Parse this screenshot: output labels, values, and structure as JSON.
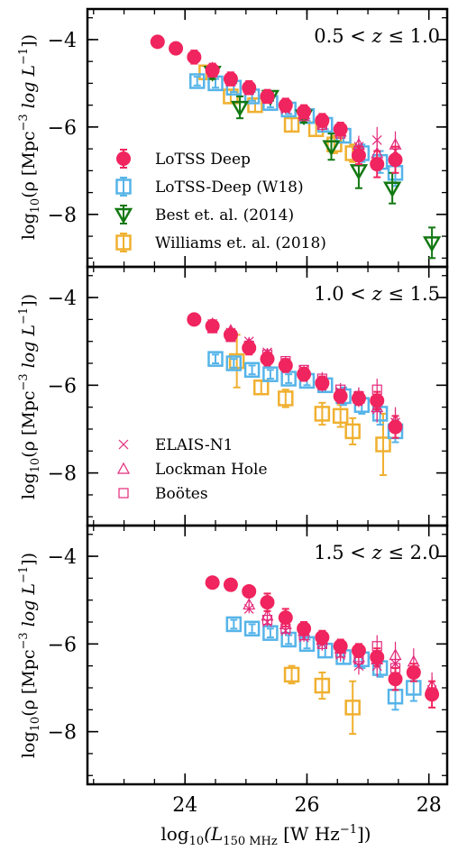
{
  "chart_data": [
    {
      "type": "scatter",
      "panel": 1,
      "redshift_label": {
        "lo": "0.5",
        "lt": "<",
        "mid": "z",
        "le": "≤",
        "hi": "1.0"
      },
      "xlim": [
        22.4,
        28.3
      ],
      "ylim": [
        -9.2,
        -3.3
      ],
      "legend": [
        {
          "name": "LoTSS Deep",
          "series": "lotss"
        },
        {
          "name": "LoTSS-Deep (W18)",
          "series": "w18"
        },
        {
          "name": "Best et. al. (2014)",
          "series": "best"
        },
        {
          "name": "Williams et. al. (2018)",
          "series": "williams"
        }
      ],
      "series": [
        {
          "name": "LoTSS Deep",
          "key": "lotss",
          "x": [
            23.55,
            23.85,
            24.15,
            24.45,
            24.75,
            25.05,
            25.35,
            25.65,
            25.95,
            26.25,
            26.55,
            26.85,
            27.15,
            27.45
          ],
          "y": [
            -4.05,
            -4.2,
            -4.4,
            -4.7,
            -4.9,
            -5.1,
            -5.3,
            -5.5,
            -5.65,
            -5.85,
            -6.05,
            -6.65,
            -6.85,
            -6.75
          ],
          "err": [
            0.05,
            0.06,
            0.15,
            0.15,
            0.15,
            0.15,
            0.15,
            0.15,
            0.15,
            0.15,
            0.15,
            0.2,
            0.3,
            0.3
          ]
        },
        {
          "name": "LoTSS-Deep (W18)",
          "key": "w18",
          "x": [
            24.2,
            24.5,
            24.8,
            25.1,
            25.4,
            25.7,
            26.0,
            26.3,
            26.6,
            26.9,
            27.2,
            27.45
          ],
          "y": [
            -4.95,
            -5.0,
            -5.1,
            -5.3,
            -5.45,
            -5.6,
            -5.75,
            -5.95,
            -6.2,
            -6.6,
            -6.8,
            -7.05
          ],
          "err": [
            0.1,
            0.1,
            0.1,
            0.1,
            0.1,
            0.1,
            0.1,
            0.1,
            0.15,
            0.2,
            0.25,
            0.3
          ]
        },
        {
          "name": "Best et. al. (2014)",
          "key": "best",
          "x": [
            24.45,
            24.9,
            25.4,
            25.95,
            26.4,
            26.85,
            27.4,
            28.05
          ],
          "y": [
            -4.75,
            -5.55,
            -5.3,
            -5.75,
            -6.45,
            -7.0,
            -7.4,
            -8.65
          ],
          "err": [
            0.15,
            0.25,
            0.1,
            0.15,
            0.3,
            0.4,
            0.35,
            0.35
          ]
        },
        {
          "name": "Williams et. al. (2018)",
          "key": "williams",
          "x": [
            24.35,
            24.75,
            25.15,
            25.75,
            26.15,
            26.45,
            26.75
          ],
          "y": [
            -4.75,
            -5.3,
            -5.5,
            -5.95,
            -6.05,
            -6.4,
            -6.6
          ],
          "err": [
            0.15,
            0.15,
            0.15,
            0.15,
            0.15,
            0.2,
            0.2
          ]
        },
        {
          "name": "ELAIS-N1",
          "key": "elais",
          "x": [
            24.45,
            24.75,
            25.05,
            25.35,
            25.65,
            25.95,
            26.25,
            26.55,
            26.85,
            27.15,
            27.45
          ],
          "y": [
            -4.7,
            -4.95,
            -5.15,
            -5.35,
            -5.6,
            -5.75,
            -5.95,
            -6.1,
            -6.45,
            -6.3,
            -6.55
          ],
          "err": [
            0.1,
            0.1,
            0.1,
            0.1,
            0.1,
            0.1,
            0.1,
            0.15,
            0.2,
            0.3,
            0.3
          ]
        },
        {
          "name": "Lockman Hole",
          "key": "lockman",
          "x": [
            24.45,
            24.75,
            25.05,
            25.35,
            25.65,
            25.95,
            26.25,
            26.55,
            26.85,
            27.15,
            27.45
          ],
          "y": [
            -4.65,
            -4.9,
            -5.1,
            -5.3,
            -5.5,
            -5.7,
            -5.85,
            -6.1,
            -6.4,
            -6.6,
            -6.4
          ],
          "err": [
            0.1,
            0.1,
            0.1,
            0.1,
            0.1,
            0.1,
            0.15,
            0.15,
            0.2,
            0.3,
            0.3
          ]
        },
        {
          "name": "Boötes",
          "key": "bootes",
          "x": [
            24.45,
            24.75,
            25.05,
            25.35,
            25.65,
            25.95,
            26.25,
            26.55,
            26.85
          ],
          "y": [
            -4.75,
            -4.95,
            -5.15,
            -5.35,
            -5.55,
            -5.75,
            -5.95,
            -6.15,
            -6.55
          ],
          "err": [
            0.1,
            0.1,
            0.1,
            0.1,
            0.1,
            0.1,
            0.15,
            0.15,
            0.2
          ]
        }
      ]
    },
    {
      "type": "scatter",
      "panel": 2,
      "redshift_label": {
        "lo": "1.0",
        "lt": "<",
        "mid": "z",
        "le": "≤",
        "hi": "1.5"
      },
      "xlim": [
        22.4,
        28.3
      ],
      "ylim": [
        -9.2,
        -3.3
      ],
      "legend": [
        {
          "name": "ELAIS-N1",
          "series": "elais"
        },
        {
          "name": "Lockman Hole",
          "series": "lockman"
        },
        {
          "name": "Boötes",
          "series": "bootes"
        }
      ],
      "series": [
        {
          "name": "LoTSS Deep",
          "key": "lotss",
          "x": [
            24.15,
            24.45,
            24.75,
            25.05,
            25.35,
            25.65,
            25.95,
            26.25,
            26.55,
            26.85,
            27.15,
            27.45
          ],
          "y": [
            -4.5,
            -4.65,
            -4.85,
            -5.15,
            -5.4,
            -5.55,
            -5.75,
            -5.95,
            -6.25,
            -6.3,
            -6.35,
            -6.95
          ],
          "err": [
            0.12,
            0.12,
            0.12,
            0.15,
            0.15,
            0.15,
            0.15,
            0.15,
            0.15,
            0.15,
            0.2,
            0.25
          ]
        },
        {
          "name": "LoTSS-Deep (W18)",
          "key": "w18",
          "x": [
            24.5,
            24.8,
            25.1,
            25.4,
            25.7,
            26.0,
            26.3,
            26.6,
            26.9,
            27.2,
            27.45
          ],
          "y": [
            -5.4,
            -5.5,
            -5.65,
            -5.75,
            -5.85,
            -5.9,
            -6.0,
            -6.25,
            -6.45,
            -6.65,
            -7.05
          ],
          "err": [
            0.1,
            0.1,
            0.1,
            0.1,
            0.1,
            0.1,
            0.15,
            0.2,
            0.2,
            0.25,
            0.25
          ]
        },
        {
          "name": "Williams et. al. (2018)",
          "key": "williams",
          "x": [
            24.85,
            25.25,
            25.65,
            26.25,
            26.55,
            26.75,
            27.25
          ],
          "y": [
            -5.45,
            -6.05,
            -6.3,
            -6.65,
            -6.7,
            -7.05,
            -7.35
          ],
          "err": [
            0.6,
            0.15,
            0.2,
            0.25,
            0.25,
            0.3,
            0.7
          ]
        },
        {
          "name": "ELAIS-N1",
          "key": "elais",
          "x": [
            24.45,
            24.75,
            25.05,
            25.35,
            25.65,
            25.95,
            26.25,
            26.55,
            26.85,
            27.15,
            27.45
          ],
          "y": [
            -4.6,
            -4.8,
            -5.0,
            -5.25,
            -5.5,
            -5.65,
            -6.0,
            -6.15,
            -6.25,
            -6.55,
            -6.85
          ],
          "err": [
            0.1,
            0.1,
            0.1,
            0.1,
            0.1,
            0.1,
            0.15,
            0.15,
            0.2,
            0.3,
            0.3
          ]
        },
        {
          "name": "Lockman Hole",
          "key": "lockman",
          "x": [
            24.45,
            24.75,
            25.05,
            25.35,
            25.65,
            25.95,
            26.25,
            26.55,
            26.85,
            27.15,
            27.45
          ],
          "y": [
            -4.6,
            -4.75,
            -5.05,
            -5.3,
            -5.5,
            -5.7,
            -5.95,
            -6.2,
            -6.3,
            -6.5,
            -6.8
          ],
          "err": [
            0.1,
            0.1,
            0.1,
            0.1,
            0.1,
            0.1,
            0.15,
            0.15,
            0.2,
            0.3,
            0.3
          ]
        },
        {
          "name": "Boötes",
          "key": "bootes",
          "x": [
            24.45,
            24.75,
            25.05,
            25.35,
            25.65,
            25.95,
            26.25,
            26.55,
            26.85,
            27.15
          ],
          "y": [
            -4.7,
            -4.9,
            -5.1,
            -5.3,
            -5.45,
            -5.65,
            -5.85,
            -6.1,
            -6.25,
            -6.1
          ],
          "err": [
            0.1,
            0.1,
            0.1,
            0.1,
            0.1,
            0.1,
            0.15,
            0.15,
            0.2,
            0.25
          ]
        }
      ]
    },
    {
      "type": "scatter",
      "panel": 3,
      "redshift_label": {
        "lo": "1.5",
        "lt": "<",
        "mid": "z",
        "le": "≤",
        "hi": "2.0"
      },
      "xlim": [
        22.4,
        28.3
      ],
      "ylim": [
        -9.2,
        -3.3
      ],
      "legend": [],
      "series": [
        {
          "name": "LoTSS Deep",
          "key": "lotss",
          "x": [
            24.45,
            24.75,
            25.05,
            25.35,
            25.65,
            25.95,
            26.25,
            26.55,
            26.85,
            27.15,
            27.45,
            27.75,
            28.05
          ],
          "y": [
            -4.6,
            -4.65,
            -4.8,
            -5.05,
            -5.4,
            -5.65,
            -5.85,
            -6.05,
            -6.15,
            -6.3,
            -6.8,
            -6.65,
            -7.15
          ],
          "err": [
            0.05,
            0.1,
            0.1,
            0.2,
            0.2,
            0.15,
            0.15,
            0.15,
            0.15,
            0.2,
            0.25,
            0.2,
            0.3
          ]
        },
        {
          "name": "LoTSS-Deep (W18)",
          "key": "w18",
          "x": [
            24.8,
            25.1,
            25.4,
            25.7,
            26.0,
            26.3,
            26.6,
            26.9,
            27.2,
            27.45,
            27.75
          ],
          "y": [
            -5.55,
            -5.65,
            -5.75,
            -5.9,
            -6.0,
            -6.15,
            -6.3,
            -6.35,
            -6.55,
            -7.2,
            -7.0
          ],
          "err": [
            0.1,
            0.1,
            0.1,
            0.1,
            0.1,
            0.15,
            0.15,
            0.2,
            0.2,
            0.3,
            0.3
          ]
        },
        {
          "name": "Williams et. al. (2018)",
          "key": "williams",
          "x": [
            25.75,
            26.25,
            26.75
          ],
          "y": [
            -6.7,
            -6.95,
            -7.45
          ],
          "err": [
            0.2,
            0.3,
            0.6
          ]
        },
        {
          "name": "ELAIS-N1",
          "key": "elais",
          "x": [
            25.05,
            25.35,
            25.65,
            25.95,
            26.25,
            26.55,
            26.85,
            27.15,
            27.45,
            28.05
          ],
          "y": [
            -5.2,
            -5.5,
            -5.7,
            -5.85,
            -6.0,
            -6.25,
            -6.5,
            -6.5,
            -6.45,
            -7.05
          ],
          "err": [
            0.1,
            0.1,
            0.1,
            0.1,
            0.15,
            0.15,
            0.2,
            0.25,
            0.3,
            0.3
          ]
        },
        {
          "name": "Lockman Hole",
          "key": "lockman",
          "x": [
            25.05,
            25.35,
            25.65,
            25.95,
            26.25,
            26.55,
            26.85,
            27.15,
            27.45,
            27.75,
            28.05
          ],
          "y": [
            -5.1,
            -5.35,
            -5.55,
            -5.7,
            -5.9,
            -6.1,
            -6.3,
            -6.35,
            -6.25,
            -6.4,
            -6.95
          ],
          "err": [
            0.1,
            0.1,
            0.1,
            0.1,
            0.15,
            0.15,
            0.2,
            0.25,
            0.3,
            0.3,
            0.3
          ]
        },
        {
          "name": "Boötes",
          "key": "bootes",
          "x": [
            25.35,
            25.65,
            25.95,
            26.25,
            26.55,
            26.85,
            27.15,
            27.45
          ],
          "y": [
            -5.45,
            -5.65,
            -5.8,
            -6.0,
            -6.2,
            -6.35,
            -6.05,
            -6.55
          ],
          "err": [
            0.1,
            0.1,
            0.1,
            0.15,
            0.15,
            0.2,
            0.25,
            0.3
          ]
        }
      ]
    }
  ],
  "axes": {
    "x_ticks": [
      24,
      26,
      28
    ],
    "y_ticks": [
      -4,
      -6,
      -8
    ],
    "x_tick_labels": [
      "24",
      "26",
      "28"
    ],
    "y_tick_labels": [
      "−4",
      "−6",
      "−8"
    ],
    "xlabel": {
      "pre": "log",
      "sub": "10",
      "mid": "(L",
      "lsub": "150 MHz",
      "post": " [W Hz",
      "sup": "−1",
      "end": "])"
    },
    "ylabel": {
      "pre": "log",
      "sub": "10",
      "mid": "(ρ [Mpc",
      "sup1": "−3",
      "mid2": " log L",
      "sup2": "−1",
      "end": "])"
    }
  },
  "styles": {
    "lotss": {
      "color": "#f0245e",
      "marker": "filled-circle"
    },
    "w18": {
      "color": "#56b4e9",
      "marker": "open-square"
    },
    "best": {
      "color": "#137812",
      "marker": "open-triangle-down"
    },
    "williams": {
      "color": "#f0b030",
      "marker": "open-square"
    },
    "elais": {
      "color": "#e4287a",
      "marker": "cross"
    },
    "lockman": {
      "color": "#e4287a",
      "marker": "open-triangle-up"
    },
    "bootes": {
      "color": "#e4287a",
      "marker": "open-square-small"
    }
  }
}
